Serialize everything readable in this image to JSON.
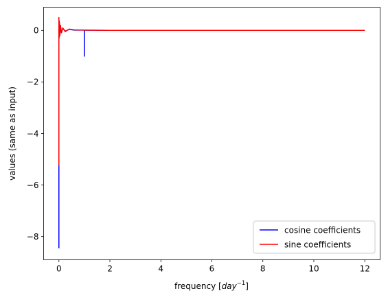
{
  "chart_data": {
    "type": "line",
    "title": "",
    "xlabel": "frequency [",
    "xlabel_math": "day",
    "xlabel_exp": "−1",
    "xlabel_end": "]",
    "ylabel": "values (same as input)",
    "xlim": [
      -0.6,
      12.6
    ],
    "ylim": [
      -8.9,
      0.9
    ],
    "x_ticks": [
      0,
      2,
      4,
      6,
      8,
      10,
      12
    ],
    "x_tick_labels": [
      "0",
      "2",
      "4",
      "6",
      "8",
      "10",
      "12"
    ],
    "y_ticks": [
      0,
      -2,
      -4,
      -6,
      -8
    ],
    "y_tick_labels": [
      "0",
      "−2",
      "−4",
      "−6",
      "−8"
    ],
    "grid": false,
    "legend_position": "lower-right",
    "series": [
      {
        "name": "cosine coefficients",
        "color": "#0000ff",
        "points": [
          [
            0.0,
            -8.45
          ],
          [
            0.0,
            0.45
          ],
          [
            0.01,
            -0.25
          ],
          [
            0.02,
            0.3
          ],
          [
            0.04,
            -0.15
          ],
          [
            0.06,
            0.18
          ],
          [
            0.1,
            -0.08
          ],
          [
            0.15,
            0.08
          ],
          [
            0.25,
            -0.03
          ],
          [
            0.4,
            0.04
          ],
          [
            0.6,
            0.01
          ],
          [
            1.0,
            0.01
          ],
          [
            1.0,
            -1.0
          ],
          [
            1.0,
            0.01
          ],
          [
            2.0,
            0.0
          ],
          [
            12.0,
            0.0
          ]
        ]
      },
      {
        "name": "sine coefficients",
        "color": "#ff0000",
        "points": [
          [
            0.0,
            -5.25
          ],
          [
            0.0,
            0.5
          ],
          [
            0.01,
            -0.3
          ],
          [
            0.02,
            0.35
          ],
          [
            0.04,
            -0.2
          ],
          [
            0.06,
            0.2
          ],
          [
            0.1,
            -0.1
          ],
          [
            0.15,
            0.1
          ],
          [
            0.25,
            -0.05
          ],
          [
            0.4,
            0.05
          ],
          [
            0.6,
            0.02
          ],
          [
            1.0,
            0.01
          ],
          [
            2.0,
            0.0
          ],
          [
            12.0,
            0.0
          ]
        ]
      }
    ]
  }
}
